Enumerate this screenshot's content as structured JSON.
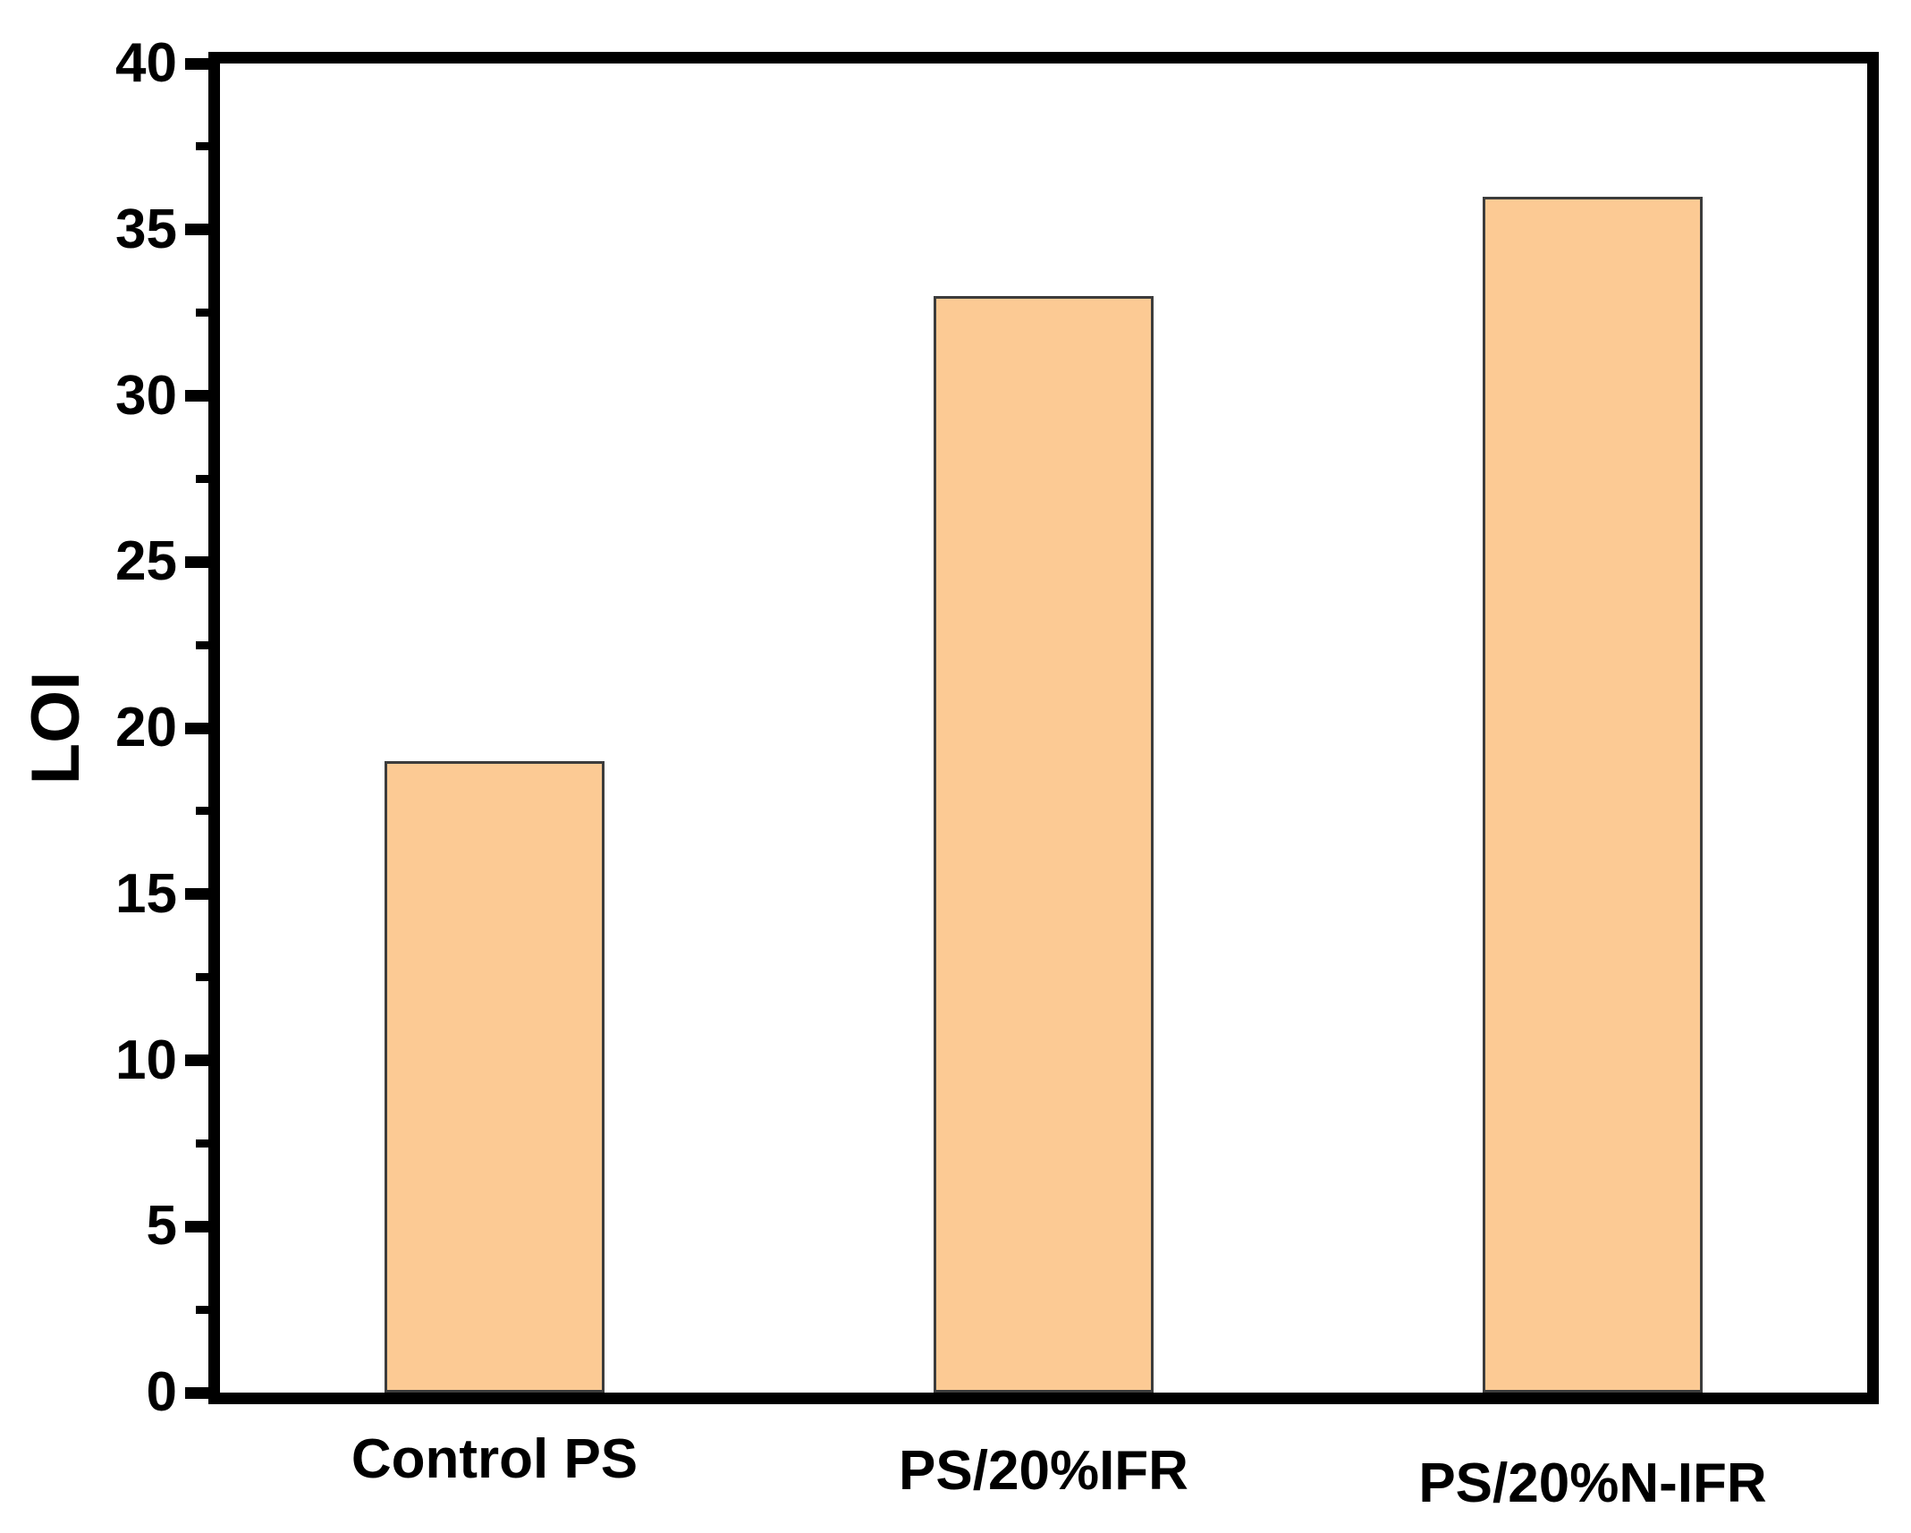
{
  "chart_data": {
    "type": "bar",
    "title": "",
    "xlabel": "",
    "ylabel": "LOI",
    "categories": [
      "Control PS",
      "PS/20%IFR",
      "PS/20%N-IFR"
    ],
    "values": [
      19,
      33,
      36
    ],
    "ylim": [
      0,
      40
    ],
    "yticks": [
      0,
      5,
      10,
      15,
      20,
      25,
      30,
      35,
      40
    ],
    "minor_tick_step": 2.5,
    "grid": false,
    "legend_position": "none",
    "bar_width_fraction": 0.4,
    "colors": {
      "bar_fill": "#FCCA94",
      "bar_edge": "#3C3C3C",
      "axis": "#000000",
      "text": "#000000",
      "background": "#FFFFFF"
    }
  }
}
